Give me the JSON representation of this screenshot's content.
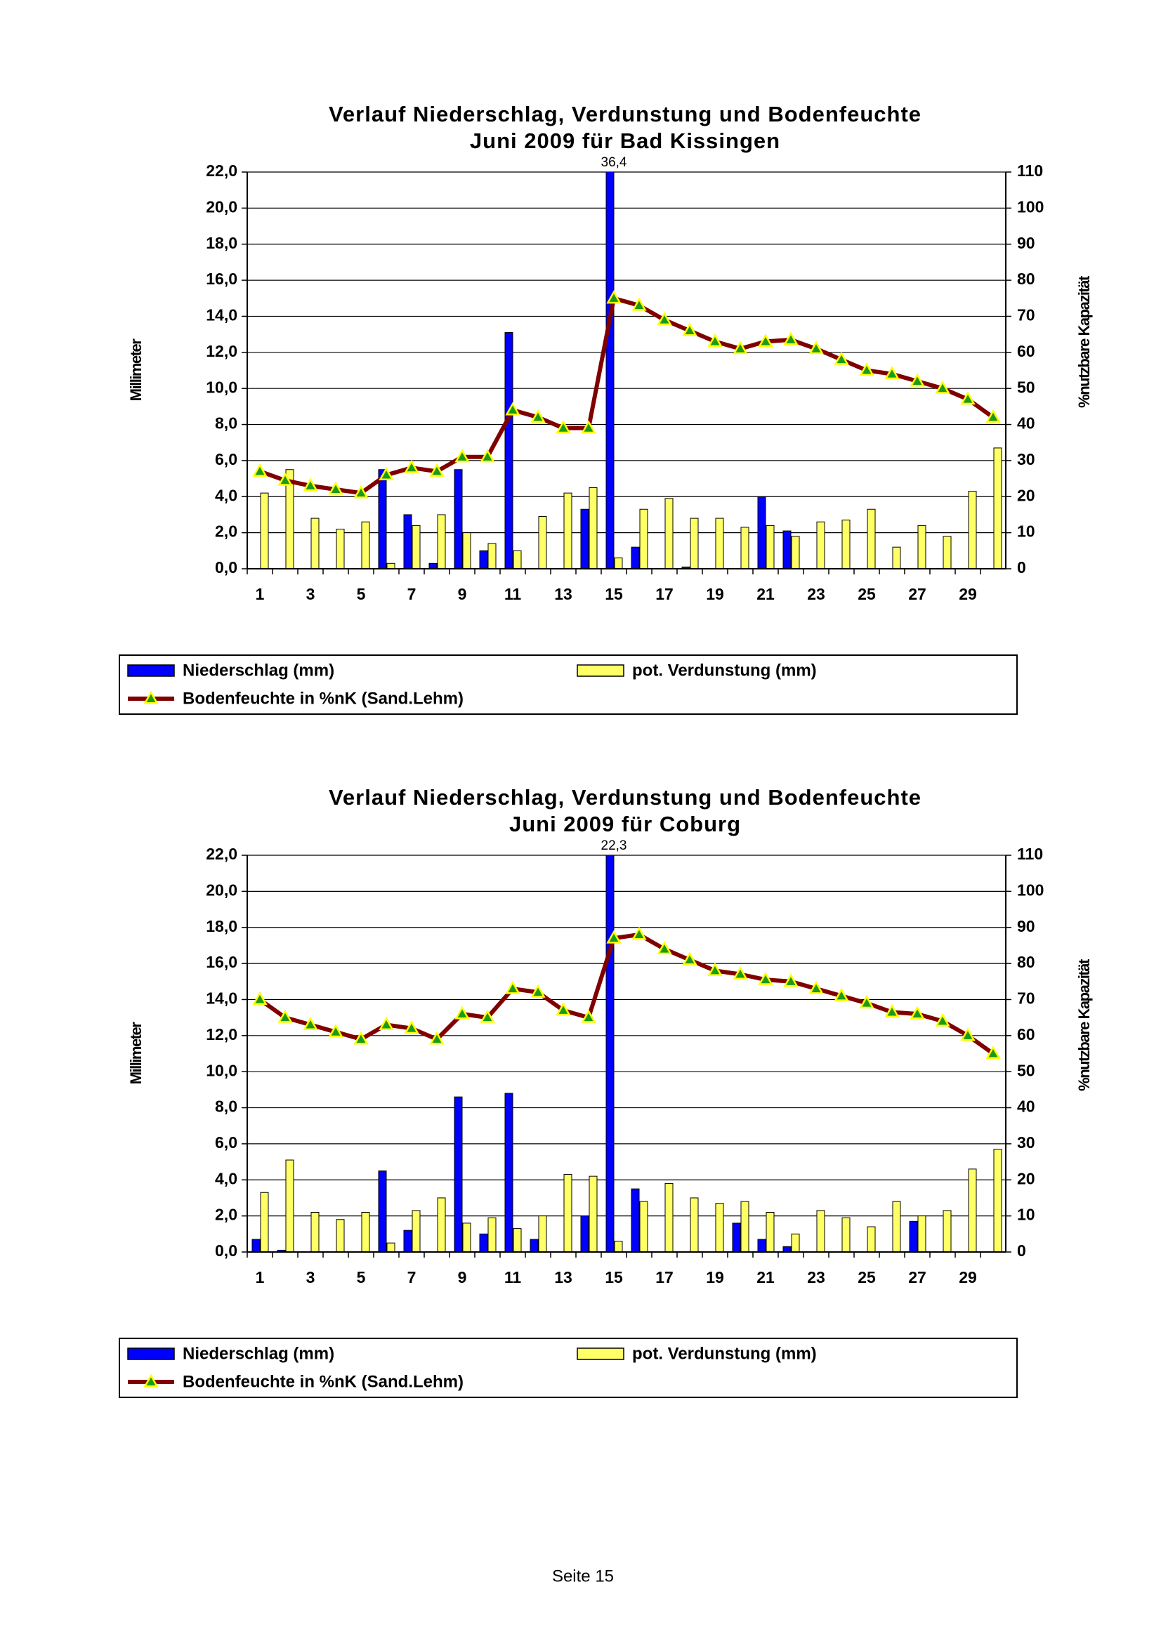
{
  "chart_data": [
    {
      "type": "bar",
      "title": [
        "Verlauf Niederschlag, Verdunstung und Bodenfeuchte",
        "Juni  2009 für Bad Kissingen"
      ],
      "y_label": "Millimeter",
      "y2_label": "%nutzbare Kapazität",
      "categories": [
        1,
        null,
        3,
        null,
        5,
        null,
        7,
        null,
        9,
        null,
        11,
        null,
        13,
        null,
        15,
        null,
        17,
        null,
        19,
        null,
        21,
        null,
        23,
        null,
        25,
        null,
        27,
        null,
        29,
        null
      ],
      "ylim": [
        0,
        22
      ],
      "yticks": [
        {
          "value": 0,
          "label": "0,0"
        },
        {
          "value": 2,
          "label": "2,0"
        },
        {
          "value": 4,
          "label": "4,0"
        },
        {
          "value": 6,
          "label": "6,0"
        },
        {
          "value": 8,
          "label": "8,0"
        },
        {
          "value": 10,
          "label": "10,0"
        },
        {
          "value": 12,
          "label": "12,0"
        },
        {
          "value": 14,
          "label": "14,0"
        },
        {
          "value": 16,
          "label": "16,0"
        },
        {
          "value": 18,
          "label": "18,0"
        },
        {
          "value": 20,
          "label": "20,0"
        },
        {
          "value": 22,
          "label": "22,0"
        }
      ],
      "y2lim": [
        0,
        110
      ],
      "y2ticks": [
        0,
        10,
        20,
        30,
        40,
        50,
        60,
        70,
        80,
        90,
        100,
        110
      ],
      "grid": true,
      "series": [
        {
          "name": "Niederschlag (mm)",
          "type": "bar",
          "color": "#0000ff",
          "values": [
            0,
            0,
            0,
            0,
            0,
            5.5,
            3.0,
            0.3,
            5.5,
            1.0,
            13.1,
            0,
            0,
            3.3,
            36.4,
            1.2,
            0,
            0.1,
            0,
            0,
            4.0,
            2.1,
            0,
            0,
            0,
            0,
            0,
            0,
            0,
            0
          ],
          "value_labels": [
            null,
            null,
            null,
            null,
            null,
            null,
            null,
            null,
            null,
            null,
            null,
            null,
            null,
            null,
            "36,4",
            null,
            null,
            null,
            null,
            null,
            null,
            null,
            null,
            null,
            null,
            null,
            null,
            null,
            null,
            null
          ]
        },
        {
          "name": "pot. Verdunstung (mm)",
          "type": "bar",
          "color": "#ffff66",
          "values": [
            4.2,
            5.5,
            2.8,
            2.2,
            2.6,
            0.3,
            2.4,
            3.0,
            2.0,
            1.4,
            1.0,
            2.9,
            4.2,
            4.5,
            0.6,
            3.3,
            3.9,
            2.8,
            2.8,
            2.3,
            2.4,
            1.8,
            2.6,
            2.7,
            3.3,
            1.2,
            2.4,
            1.8,
            4.3,
            6.7
          ]
        },
        {
          "name": "Bodenfeuchte in %nK (Sand.Lehm)",
          "type": "line",
          "axis": "y2",
          "color": "#800000",
          "values": [
            27,
            24.5,
            23,
            22,
            21,
            26,
            28,
            27,
            31,
            31,
            44,
            42,
            39,
            39,
            75,
            73,
            69,
            66,
            63,
            61,
            63,
            63.5,
            61,
            58,
            55,
            54,
            52,
            50,
            47,
            42
          ]
        }
      ]
    },
    {
      "type": "bar",
      "title": [
        "Verlauf Niederschlag, Verdunstung und Bodenfeuchte",
        "Juni 2009 für Coburg"
      ],
      "y_label": "Millimeter",
      "y2_label": "%nutzbare Kapazität",
      "categories": [
        1,
        null,
        3,
        null,
        5,
        null,
        7,
        null,
        9,
        null,
        11,
        null,
        13,
        null,
        15,
        null,
        17,
        null,
        19,
        null,
        21,
        null,
        23,
        null,
        25,
        null,
        27,
        null,
        29,
        null
      ],
      "ylim": [
        0,
        22
      ],
      "yticks": [
        {
          "value": 0,
          "label": "0,0"
        },
        {
          "value": 2,
          "label": "2,0"
        },
        {
          "value": 4,
          "label": "4,0"
        },
        {
          "value": 6,
          "label": "6,0"
        },
        {
          "value": 8,
          "label": "8,0"
        },
        {
          "value": 10,
          "label": "10,0"
        },
        {
          "value": 12,
          "label": "12,0"
        },
        {
          "value": 14,
          "label": "14,0"
        },
        {
          "value": 16,
          "label": "16,0"
        },
        {
          "value": 18,
          "label": "18,0"
        },
        {
          "value": 20,
          "label": "20,0"
        },
        {
          "value": 22,
          "label": "22,0"
        }
      ],
      "y2lim": [
        0,
        110
      ],
      "y2ticks": [
        0,
        10,
        20,
        30,
        40,
        50,
        60,
        70,
        80,
        90,
        100,
        110
      ],
      "grid": true,
      "series": [
        {
          "name": "Niederschlag (mm)",
          "type": "bar",
          "color": "#0000ff",
          "values": [
            0.7,
            0.1,
            0,
            0,
            0,
            4.5,
            1.2,
            0,
            8.6,
            1.0,
            8.8,
            0.7,
            0,
            2.0,
            22.3,
            3.5,
            0,
            0,
            0,
            1.6,
            0.7,
            0.3,
            0,
            0,
            0,
            0,
            1.7,
            0,
            0,
            0
          ],
          "value_labels": [
            null,
            null,
            null,
            null,
            null,
            null,
            null,
            null,
            null,
            null,
            null,
            null,
            null,
            null,
            "22,3",
            null,
            null,
            null,
            null,
            null,
            null,
            null,
            null,
            null,
            null,
            null,
            null,
            null,
            null,
            null
          ]
        },
        {
          "name": "pot. Verdunstung (mm)",
          "type": "bar",
          "color": "#ffff66",
          "values": [
            3.3,
            5.1,
            2.2,
            1.8,
            2.2,
            0.5,
            2.3,
            3.0,
            1.6,
            1.9,
            1.3,
            2.0,
            4.3,
            4.2,
            0.6,
            2.8,
            3.8,
            3.0,
            2.7,
            2.8,
            2.2,
            1.0,
            2.3,
            1.9,
            1.4,
            2.8,
            2.0,
            2.3,
            4.6,
            5.7
          ]
        },
        {
          "name": "Bodenfeuchte in %nK (Sand.Lehm)",
          "type": "line",
          "axis": "y2",
          "color": "#800000",
          "values": [
            70,
            65,
            63,
            61,
            59,
            63,
            62,
            59,
            66,
            65,
            73,
            72,
            67,
            65,
            87,
            88,
            84,
            81,
            78,
            77,
            75.5,
            75,
            73,
            71,
            69,
            66.5,
            66,
            64,
            60,
            55
          ]
        }
      ]
    }
  ],
  "footer": "Seite 15"
}
